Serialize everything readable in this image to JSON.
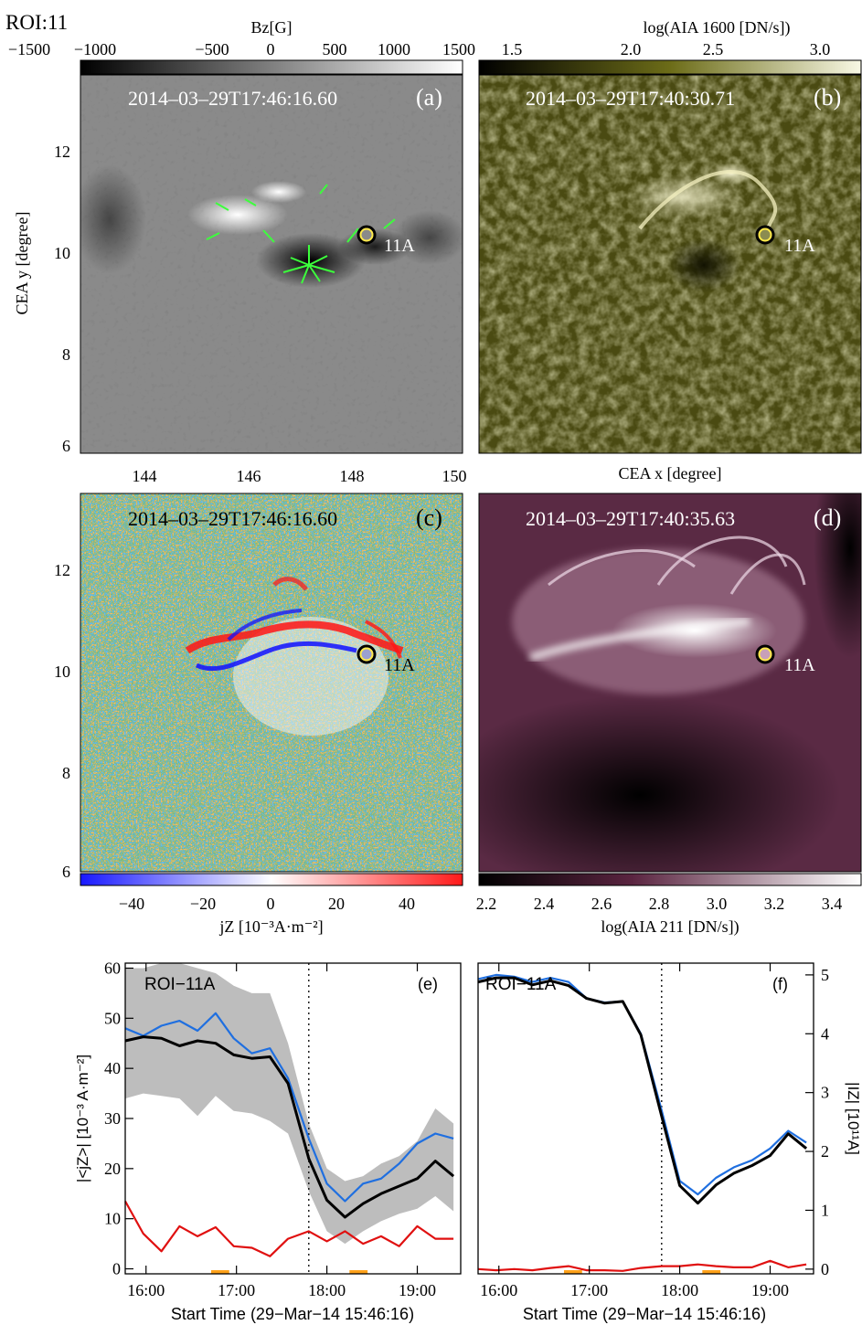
{
  "figure_label": "ROI:11",
  "panels": {
    "a": {
      "timestamp": "2014–03–29T17:46:16.60",
      "letter": "(a)",
      "colorbar_title": "Bz[G]",
      "colorbar_ticks": [
        "−1500",
        "−1000",
        "−500",
        "0",
        "500",
        "1000",
        "1500"
      ],
      "roi_label": "11A",
      "ylabel": "CEA y [degree]",
      "y_ticks": [
        "12",
        "10",
        "8",
        "6"
      ],
      "x_ticks": [
        "144",
        "146",
        "148",
        "150"
      ]
    },
    "b": {
      "timestamp": "2014–03–29T17:40:30.71",
      "letter": "(b)",
      "colorbar_title": "log(AIA 1600 [DN/s])",
      "colorbar_ticks": [
        "1.5",
        "2.0",
        "2.5",
        "3.0"
      ],
      "roi_label": "11A",
      "xlabel": "CEA x [degree]"
    },
    "c": {
      "timestamp": "2014–03–29T17:46:16.60",
      "letter": "(c)",
      "roi_label": "11A",
      "y_ticks": [
        "12",
        "10",
        "8",
        "6"
      ],
      "colorbar_ticks": [
        "−40",
        "−20",
        "0",
        "20",
        "40"
      ],
      "colorbar_title": "jZ [10⁻³A·m⁻²]"
    },
    "d": {
      "timestamp": "2014–03–29T17:40:35.63",
      "letter": "(d)",
      "roi_label": "11A",
      "colorbar_ticks": [
        "2.2",
        "2.4",
        "2.6",
        "2.8",
        "3.0",
        "3.2",
        "3.4"
      ],
      "colorbar_title": "log(AIA 211 [DN/s])"
    }
  },
  "chart_data": [
    {
      "panel": "e",
      "type": "line",
      "annotation": "ROI−11A",
      "letter": "(e)",
      "ylabel": "|<jZ>| [10⁻³ A·m⁻²]",
      "xlabel": "Start Time (29−Mar−14 15:46:16)",
      "x_tick_labels": [
        "16:00",
        "17:00",
        "18:00",
        "19:00"
      ],
      "y_tick_labels": [
        "0",
        "10",
        "20",
        "30",
        "40",
        "50",
        "60"
      ],
      "ylim": [
        -1,
        61
      ],
      "xlim_hours": [
        15.77,
        19.48
      ],
      "vertical_marker_hour": 17.8,
      "x_hours": [
        15.77,
        15.97,
        16.17,
        16.37,
        16.57,
        16.77,
        16.97,
        17.17,
        17.37,
        17.57,
        17.8,
        18.0,
        18.2,
        18.4,
        18.6,
        18.8,
        19.0,
        19.2,
        19.4
      ],
      "series": [
        {
          "color": "#1f6fe0",
          "values": [
            48,
            46.5,
            48.5,
            49.5,
            47.5,
            51,
            46,
            43,
            44,
            38,
            26,
            17,
            13.5,
            17,
            18,
            21,
            25,
            27,
            26
          ]
        },
        {
          "color": "#000000",
          "values": [
            45.5,
            46.3,
            46,
            44.5,
            45.5,
            45,
            42.7,
            42,
            42.3,
            37,
            22,
            13.7,
            10.3,
            13,
            15,
            16.5,
            18,
            21.5,
            18.5
          ]
        },
        {
          "color": "#e01010",
          "values": [
            13.5,
            7,
            3.5,
            8.5,
            6.5,
            8.3,
            4.5,
            4.2,
            2.5,
            6,
            7.5,
            5.5,
            7.5,
            5,
            6.5,
            4.5,
            8.5,
            6,
            6
          ]
        }
      ],
      "band": {
        "color": "#bdbdbd",
        "lower": [
          34,
          35,
          34.5,
          34,
          30.5,
          34.5,
          31.5,
          31,
          29.5,
          27,
          15.5,
          7.5,
          5,
          7.5,
          9.5,
          11,
          12,
          14.5,
          11.5
        ],
        "upper": [
          60,
          60,
          61,
          61,
          60,
          59,
          56.5,
          55,
          55,
          45,
          29,
          20,
          17.5,
          18.5,
          21,
          22.5,
          25.5,
          32,
          29
        ]
      },
      "orange_marks_hours": [
        [
          16.72,
          16.92
        ],
        [
          18.25,
          18.45
        ]
      ]
    },
    {
      "panel": "f",
      "type": "line",
      "annotation": "ROI−11A",
      "letter": "(f)",
      "ylabel": "|IZ| [10¹¹A]",
      "xlabel": "Start Time (29−Mar−14 15:46:16)",
      "x_tick_labels": [
        "16:00",
        "17:00",
        "18:00",
        "19:00"
      ],
      "y_tick_labels": [
        "0",
        "1",
        "2",
        "3",
        "4",
        "5"
      ],
      "ylim": [
        -0.08,
        5.2
      ],
      "xlim_hours": [
        15.77,
        19.48
      ],
      "vertical_marker_hour": 17.8,
      "x_hours": [
        15.77,
        15.97,
        16.17,
        16.37,
        16.57,
        16.77,
        16.97,
        17.17,
        17.37,
        17.57,
        17.8,
        18.0,
        18.2,
        18.4,
        18.6,
        18.8,
        19.0,
        19.2,
        19.4
      ],
      "series": [
        {
          "color": "#1f6fe0",
          "values": [
            4.93,
            5.0,
            4.97,
            4.88,
            4.95,
            4.88,
            4.6,
            4.53,
            4.55,
            4.0,
            2.7,
            1.5,
            1.27,
            1.55,
            1.73,
            1.85,
            2.05,
            2.35,
            2.15
          ]
        },
        {
          "color": "#000000",
          "values": [
            4.88,
            4.95,
            4.95,
            4.83,
            4.9,
            4.82,
            4.6,
            4.52,
            4.55,
            3.98,
            2.6,
            1.42,
            1.12,
            1.43,
            1.63,
            1.76,
            1.93,
            2.3,
            2.05
          ]
        },
        {
          "color": "#e01010",
          "values": [
            0.0,
            -0.02,
            0.0,
            -0.02,
            0.02,
            0.05,
            -0.02,
            -0.02,
            -0.03,
            0.02,
            0.05,
            0.05,
            0.08,
            0.05,
            0.03,
            0.03,
            0.14,
            0.03,
            0.08
          ]
        }
      ],
      "orange_marks_hours": [
        [
          16.72,
          16.92
        ],
        [
          18.25,
          18.45
        ]
      ]
    }
  ]
}
